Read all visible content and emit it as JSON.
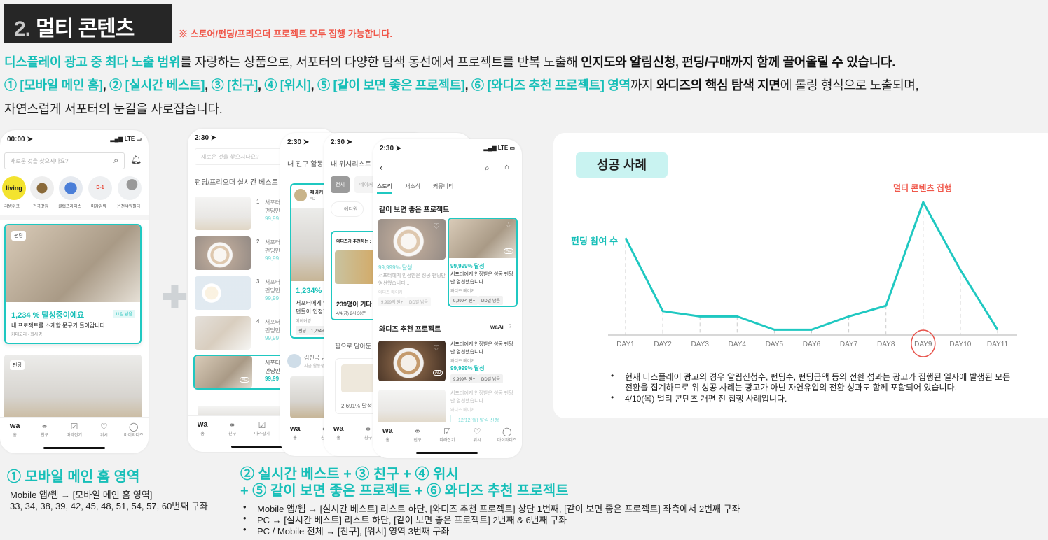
{
  "header": {
    "number": "2.",
    "title": "멀티 콘텐츠",
    "note": "※ 스토어/펀딩/프리오더 프로젝트 모두 집행 가능합니다."
  },
  "lead": {
    "l1_a": "디스플레이 광고 중 최다 노출 범위",
    "l1_b": "를 자랑하는 상품으로, 서포터의 다양한 탐색 동선에서 프로젝트를 반복 노출해 ",
    "l1_c": "인지도와 알림신청, 펀딩/구매까지 함께 끌어올릴 수 있습니다.",
    "l2_items": [
      "① [모바일 메인 홈]",
      "② [실시간 베스트]",
      "③ [친구]",
      "④ [위시]",
      "⑤ [같이 보면 좋은 프로젝트]",
      "⑥ [와디즈 추천 프로젝트] 영역"
    ],
    "l2_sep": ", ",
    "l2_b": "까지 ",
    "l2_c": "와디즈의 핵심 탐색 지면",
    "l2_d": "에 롤링 형식으로 노출되며,",
    "l3": "자연스럽게 서포터의 눈길을 사로잡습니다."
  },
  "nav": [
    "홈",
    "친구",
    "따라잡기",
    "위시",
    "마이와디즈"
  ],
  "nav_logo": "wa",
  "phone_home": {
    "time": "00:00 ➤",
    "status": "LTE",
    "search_placeholder": "새로운 것을 찾으시나요?",
    "categories": [
      "리빙위크",
      "전국맛집",
      "클럽프라이스",
      "마감임박",
      "온천샤워필터"
    ],
    "living_logo": "living",
    "deadline_icon": "D-1",
    "card1": {
      "badge": "펀딩",
      "rate": "1,234 % 달성중이에요",
      "days": "11일 남음",
      "desc": "내 프로젝트를 소개할 문구가 들어갑니다",
      "meta": "카테고리 · 회사명"
    },
    "card2": {
      "badge": "펀딩"
    }
  },
  "phone_best": {
    "time": "2:30 ➤",
    "search_placeholder": "새로운 것을 찾으시나요?",
    "title": "펀딩/프리오더 실시간 베스트",
    "items": [
      {
        "rank": "1",
        "l1": "서포터에게",
        "l2": "펀딩만",
        "rate": "99,99"
      },
      {
        "rank": "2",
        "l1": "서포터에게",
        "l2": "펀딩만",
        "rate": "99,99"
      },
      {
        "rank": "3",
        "l1": "서포터에게",
        "l2": "펀딩만",
        "rate": "99,99"
      },
      {
        "rank": "4",
        "l1": "서포터에게",
        "l2": "펀딩만",
        "rate": "99,99"
      },
      {
        "rank": "",
        "l1": "서포터에게",
        "l2": "펀딩만",
        "rate": "99,99",
        "ad": "AD"
      }
    ]
  },
  "phone_friend": {
    "time": "2:30 ➤",
    "title": "내 친구 활동",
    "maker": "메이커 :",
    "ad": "AD",
    "rate": "1,234%",
    "desc1": "서포터에게 인",
    "desc2": "펀들이 인정한",
    "maker_name": "메이커명",
    "tags": [
      "펀딩",
      "1,234억"
    ],
    "friend_name": "김진국 님",
    "friend_status": "지금 활동중"
  },
  "phone_wish": {
    "time": "2:30 ➤",
    "title": "내 위시리스트",
    "tabs": [
      "전체",
      "메이커"
    ],
    "chip": "에디원",
    "rec_title": "와디즈가 추천하는 :",
    "waiting": "239명이 기다",
    "schedule": "4/4(금) 2시 30분",
    "saved_title": "찜으로 담아둔",
    "saved_rate": "2,691% 달성"
  },
  "phone_similar": {
    "time": "2:30 ➤",
    "status": "LTE",
    "tabs": [
      "스토리",
      "새소식",
      "커뮤니티"
    ],
    "section1": "같이 보면 좋은 프로젝트",
    "cards": [
      {
        "rate": "99,999% 달성",
        "desc": "서포터에게 인정받은 성공 펀딩만 엄선했습니다...",
        "maker": "와디즈 메이커",
        "tags": [
          "9,999억 원+",
          "DD일 남음"
        ]
      },
      {
        "rate": "99,999% 달성",
        "desc": "서포터에게 인정받은 성공 펀딩만 엄선했습니다...",
        "maker": "와디즈 메이커",
        "tags": [
          "9,999억 원+",
          "DD일 남음"
        ],
        "ad": "AD"
      }
    ],
    "section2": "와디즈 추천 프로젝트",
    "wai_logo": "waAi",
    "rec": [
      {
        "desc": "서포터에게 인정받은 성공 펀딩만 엄선했습니다...",
        "maker": "와디즈 메이커",
        "rate": "99,999% 달성",
        "tags": [
          "9,999억 원+",
          "DD일 남음"
        ],
        "ad": "AD"
      },
      {
        "desc": "서포터에게 인정받은 성공 펀딩만 엄선했습니다...",
        "maker": "와디즈 메이커",
        "button": "12/12(월) 알림 신청"
      }
    ]
  },
  "success": {
    "badge": "성공 사례",
    "bullets": [
      "현재 디스플레이 광고의 경우 알림신청수, 펀딩수, 펀딩금액 등의 전환 성과는 광고가 집행된 일자에 발생된 모든",
      "전환을 집계하므로 위 성공 사례는 광고가 아닌 자연유입의 전환 성과도 함께 포함되어 있습니다.",
      "4/10(목) 멀티 콘텐츠 개편 전 집행 사례입니다."
    ]
  },
  "chart_data": {
    "type": "line",
    "title": "",
    "series": [
      {
        "name": "펀딩 참여 수",
        "values": [
          73,
          18,
          14,
          14,
          4,
          4,
          14,
          22,
          100,
          49,
          4
        ]
      }
    ],
    "categories": [
      "DAY1",
      "DAY2",
      "DAY3",
      "DAY4",
      "DAY5",
      "DAY6",
      "DAY7",
      "DAY8",
      "DAY9",
      "DAY10",
      "DAY11"
    ],
    "annotation": {
      "label": "멀티 콘텐츠 집행",
      "category": "DAY9",
      "color": "#f0574a"
    },
    "highlighted_category": "DAY9",
    "ylim": [
      0,
      100
    ],
    "y_axis_visible": false,
    "grid": "dashed vertical drop lines",
    "line_color": "#1fc8c1"
  },
  "section_home": {
    "title": "① 모바일 메인 홈 영역",
    "line1": "Mobile 앱/웹 → [모바일 메인 홈 영역]",
    "line2": "33, 34, 38, 39, 42, 45, 48, 51, 54, 57, 60번째 구좌"
  },
  "section_others": {
    "title1": "② 실시간 베스트 + ③ 친구 + ④ 위시",
    "title2": "+ ⑤ 같이 보면 좋은 프로젝트 + ⑥ 와디즈 추천 프로젝트",
    "bullets": [
      "Mobile 앱/웹 → [실시간 베스트] 리스트 하단, [와디즈 추천 프로젝트] 상단 1번째, [같이 보면 좋은 프로젝트] 좌측에서 2번째 구좌",
      "PC → [실시간 베스트] 리스트 하단, [같이 보면 좋은 프로젝트] 2번째 & 6번째 구좌",
      "PC / Mobile 전체 → [친구], [위시] 영역 3번째 구좌"
    ]
  },
  "colors": {
    "accent": "#17bfb8",
    "highlight": "#f0574a",
    "title_bg": "#262626",
    "badge_bg": "#c9f3f1"
  }
}
